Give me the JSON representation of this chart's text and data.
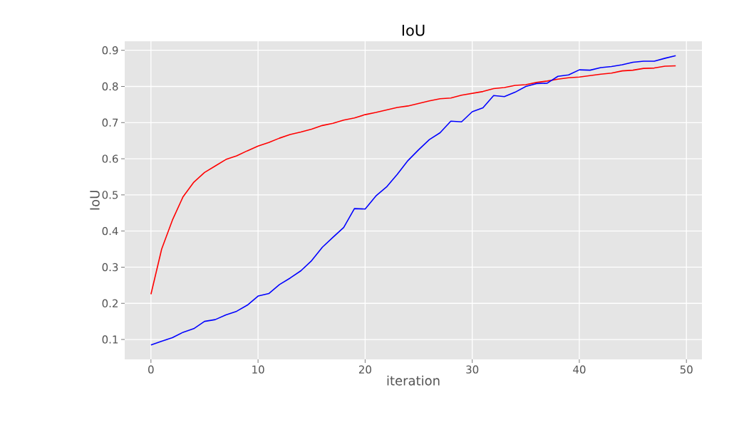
{
  "chart_data": {
    "type": "line",
    "title": "IoU",
    "xlabel": "iteration",
    "ylabel": "IoU",
    "x": [
      0,
      1,
      2,
      3,
      4,
      5,
      6,
      7,
      8,
      9,
      10,
      11,
      12,
      13,
      14,
      15,
      16,
      17,
      18,
      19,
      20,
      21,
      22,
      23,
      24,
      25,
      26,
      27,
      28,
      29,
      30,
      31,
      32,
      33,
      34,
      35,
      36,
      37,
      38,
      39,
      40,
      41,
      42,
      43,
      44,
      45,
      46,
      47,
      48,
      49
    ],
    "series": [
      {
        "color": "#ff0000",
        "values": [
          0.225,
          0.35,
          0.43,
          0.495,
          0.535,
          0.562,
          0.58,
          0.598,
          0.608,
          0.622,
          0.635,
          0.645,
          0.657,
          0.667,
          0.674,
          0.682,
          0.692,
          0.698,
          0.707,
          0.713,
          0.722,
          0.728,
          0.735,
          0.742,
          0.746,
          0.753,
          0.76,
          0.766,
          0.768,
          0.776,
          0.781,
          0.786,
          0.794,
          0.797,
          0.803,
          0.805,
          0.811,
          0.815,
          0.82,
          0.824,
          0.826,
          0.83,
          0.834,
          0.837,
          0.843,
          0.845,
          0.85,
          0.851,
          0.856,
          0.857
        ]
      },
      {
        "color": "#0000ff",
        "values": [
          0.085,
          0.095,
          0.105,
          0.12,
          0.13,
          0.15,
          0.155,
          0.168,
          0.178,
          0.195,
          0.22,
          0.227,
          0.252,
          0.27,
          0.29,
          0.318,
          0.355,
          0.383,
          0.41,
          0.462,
          0.461,
          0.497,
          0.522,
          0.557,
          0.595,
          0.625,
          0.653,
          0.672,
          0.704,
          0.702,
          0.73,
          0.741,
          0.775,
          0.772,
          0.784,
          0.8,
          0.808,
          0.809,
          0.828,
          0.832,
          0.846,
          0.845,
          0.852,
          0.855,
          0.86,
          0.867,
          0.87,
          0.87,
          0.878,
          0.885
        ]
      }
    ],
    "xlim": [
      -2.45,
      51.45
    ],
    "ylim": [
      0.045,
      0.925
    ],
    "xticks": [
      0,
      10,
      20,
      30,
      40,
      50
    ],
    "yticks": [
      0.1,
      0.2,
      0.3,
      0.4,
      0.5,
      0.6,
      0.7,
      0.8,
      0.9
    ],
    "grid": true,
    "marker": "none",
    "line_style": "solid"
  }
}
